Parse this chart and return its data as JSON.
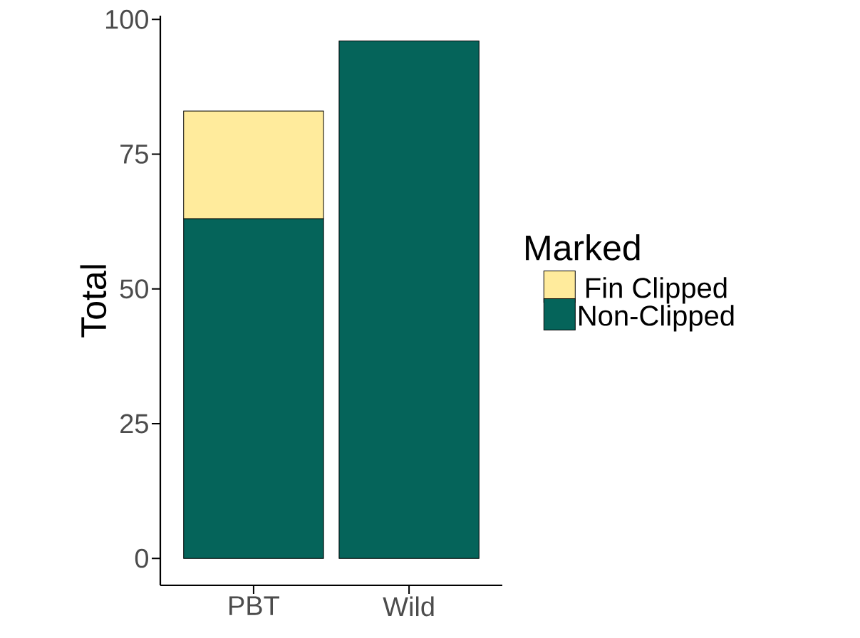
{
  "chart_data": {
    "type": "bar",
    "stacked": true,
    "ylabel": "Total",
    "legend_title": "Marked",
    "categories": [
      "PBT",
      "Wild"
    ],
    "series": [
      {
        "name": "Non-Clipped",
        "color": "#05645a",
        "values": [
          63,
          96
        ]
      },
      {
        "name": "Fin Clipped",
        "color": "#ffeb9c",
        "values": [
          20,
          null
        ]
      }
    ],
    "ylim": [
      -5,
      100.7
    ],
    "yticks": [
      0,
      25,
      50,
      75,
      100
    ],
    "grid": false,
    "legend": "right"
  }
}
